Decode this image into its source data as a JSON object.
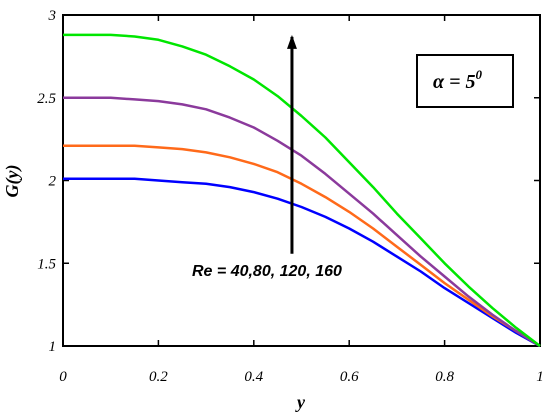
{
  "chart_data": {
    "type": "line",
    "title": "",
    "xlabel": "y",
    "ylabel": "G(y)",
    "xlim": [
      0,
      1
    ],
    "ylim": [
      1,
      3
    ],
    "x_ticks": [
      0,
      0.2,
      0.4,
      0.6,
      0.8,
      1
    ],
    "x_tick_labels": [
      "0",
      "0.2",
      "0.4",
      "0.6",
      "0.8",
      "1"
    ],
    "y_ticks": [
      1,
      1.5,
      2,
      2.5,
      3
    ],
    "y_tick_labels": [
      "1",
      "1.5",
      "2",
      "2.5",
      "3"
    ],
    "grid": false,
    "x": [
      0,
      0.05,
      0.1,
      0.15,
      0.2,
      0.25,
      0.3,
      0.35,
      0.4,
      0.45,
      0.5,
      0.55,
      0.6,
      0.65,
      0.7,
      0.75,
      0.8,
      0.85,
      0.9,
      0.95,
      1
    ],
    "series": [
      {
        "color": "#0000ff",
        "values": [
          2.01,
          2.01,
          2.01,
          2.01,
          2.0,
          1.99,
          1.98,
          1.96,
          1.93,
          1.89,
          1.84,
          1.78,
          1.71,
          1.63,
          1.54,
          1.45,
          1.35,
          1.26,
          1.17,
          1.08,
          1.0
        ]
      },
      {
        "color": "#ff6a1a",
        "values": [
          2.21,
          2.21,
          2.21,
          2.21,
          2.2,
          2.19,
          2.17,
          2.14,
          2.1,
          2.05,
          1.98,
          1.9,
          1.81,
          1.71,
          1.6,
          1.49,
          1.38,
          1.28,
          1.18,
          1.09,
          1.0
        ]
      },
      {
        "color": "#8b3a9c",
        "values": [
          2.5,
          2.5,
          2.5,
          2.49,
          2.48,
          2.46,
          2.43,
          2.38,
          2.32,
          2.24,
          2.15,
          2.04,
          1.92,
          1.8,
          1.67,
          1.54,
          1.42,
          1.3,
          1.19,
          1.09,
          1.0
        ]
      },
      {
        "color": "#00e600",
        "values": [
          2.88,
          2.88,
          2.88,
          2.87,
          2.85,
          2.81,
          2.76,
          2.69,
          2.61,
          2.51,
          2.39,
          2.26,
          2.11,
          1.96,
          1.8,
          1.65,
          1.5,
          1.36,
          1.23,
          1.11,
          1.0
        ]
      }
    ],
    "annotations": {
      "arrow": {
        "x": 0.48,
        "y_from": 1.92,
        "y_to": 2.94
      },
      "arrow_label": "Re = 40,80, 120, 160",
      "param_box": {
        "alpha_symbol": "α",
        "text": " = 5",
        "superscript": "0"
      }
    }
  }
}
